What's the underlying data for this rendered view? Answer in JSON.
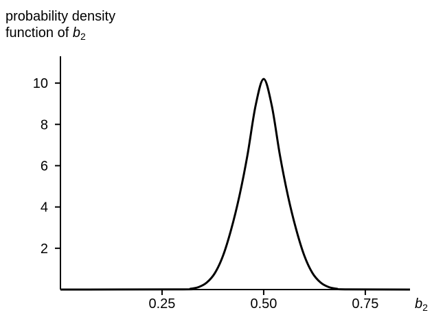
{
  "chart_data": {
    "type": "line",
    "ylabel_line1": "probability density",
    "ylabel_line2_prefix": "function of ",
    "ylabel_var": "b",
    "ylabel_sub": "2",
    "xlabel_var": "b",
    "xlabel_sub": "2",
    "xlim": [
      0.0,
      0.86
    ],
    "ylim": [
      0,
      11.3
    ],
    "x_ticks": [
      {
        "value": 0.25,
        "label": "0.25"
      },
      {
        "value": 0.5,
        "label": "0.50"
      },
      {
        "value": 0.75,
        "label": "0.75"
      }
    ],
    "y_ticks": [
      {
        "value": 2,
        "label": "2"
      },
      {
        "value": 4,
        "label": "4"
      },
      {
        "value": 6,
        "label": "6"
      },
      {
        "value": 8,
        "label": "8"
      },
      {
        "value": 10,
        "label": "10"
      }
    ],
    "grid": false,
    "series": [
      {
        "x": [
          0.0,
          0.3,
          0.32,
          0.34,
          0.36,
          0.38,
          0.4,
          0.42,
          0.44,
          0.46,
          0.48,
          0.5,
          0.52,
          0.54,
          0.56,
          0.58,
          0.6,
          0.62,
          0.64,
          0.66,
          0.68,
          0.7,
          0.86
        ],
        "y": [
          0.0,
          0.01,
          0.04,
          0.12,
          0.34,
          0.8,
          1.64,
          2.91,
          4.51,
          6.5,
          8.9,
          10.2,
          8.9,
          6.5,
          4.51,
          2.91,
          1.64,
          0.8,
          0.34,
          0.12,
          0.04,
          0.01,
          0.0
        ]
      }
    ]
  }
}
